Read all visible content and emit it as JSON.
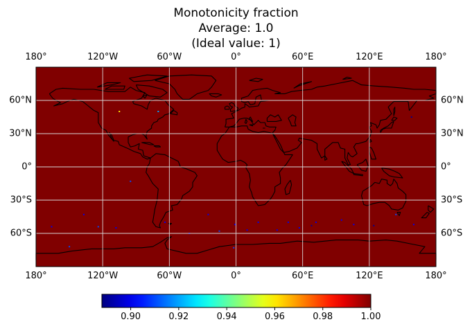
{
  "title": {
    "line1": "Monotonicity fraction",
    "line2": "Average: 1.0",
    "line3": "(Ideal value: 1)"
  },
  "map": {
    "projection": "PlateCarree",
    "fill_color": "#800000",
    "coastline_color": "#000000",
    "grid": true,
    "gridline_color": "#d9d9d9"
  },
  "axes": {
    "lon_ticks": [
      "180°",
      "120°W",
      "60°W",
      "0°",
      "60°E",
      "120°E",
      "180°"
    ],
    "lat_ticks": [
      "60°N",
      "30°N",
      "0°",
      "30°S",
      "60°S"
    ]
  },
  "chart_data": {
    "type": "heatmap",
    "field": "Monotonicity fraction",
    "average": 1.0,
    "ideal_value": 1,
    "colormap": "jet",
    "colorbar": {
      "range": [
        0.888,
        1.0
      ],
      "ticks": [
        0.9,
        0.92,
        0.94,
        0.96,
        0.98,
        1.0
      ],
      "tick_labels": [
        "0.90",
        "0.92",
        "0.94",
        "0.96",
        "0.98",
        "1.00"
      ],
      "orientation": "horizontal"
    },
    "dominant_value": 1.0,
    "low_value_points": [
      {
        "lon": -105,
        "lat": 50,
        "value": 0.96
      },
      {
        "lon": -70,
        "lat": 50,
        "value": 0.92
      },
      {
        "lon": 158,
        "lat": 45,
        "value": 0.89
      },
      {
        "lon": -95,
        "lat": -13,
        "value": 0.91
      },
      {
        "lon": -137,
        "lat": -43,
        "value": 0.9
      },
      {
        "lon": -166,
        "lat": -54,
        "value": 0.9
      },
      {
        "lon": -124,
        "lat": -54,
        "value": 0.91
      },
      {
        "lon": -108,
        "lat": -55,
        "value": 0.9
      },
      {
        "lon": -64,
        "lat": -50,
        "value": 0.9
      },
      {
        "lon": -42,
        "lat": -60,
        "value": 0.9
      },
      {
        "lon": -25,
        "lat": -43,
        "value": 0.9
      },
      {
        "lon": -15,
        "lat": -58,
        "value": 0.91
      },
      {
        "lon": -1,
        "lat": -52,
        "value": 0.9
      },
      {
        "lon": 10,
        "lat": -57,
        "value": 0.9
      },
      {
        "lon": 20,
        "lat": -50,
        "value": 0.9
      },
      {
        "lon": 37,
        "lat": -57,
        "value": 0.9
      },
      {
        "lon": 47,
        "lat": -50,
        "value": 0.9
      },
      {
        "lon": 57,
        "lat": -55,
        "value": 0.9
      },
      {
        "lon": 68,
        "lat": -53,
        "value": 0.89
      },
      {
        "lon": 72,
        "lat": -50,
        "value": 0.9
      },
      {
        "lon": 95,
        "lat": -48,
        "value": 0.9
      },
      {
        "lon": 106,
        "lat": -52,
        "value": 0.9
      },
      {
        "lon": 124,
        "lat": -53,
        "value": 0.89
      },
      {
        "lon": 144,
        "lat": -43,
        "value": 0.91
      },
      {
        "lon": 160,
        "lat": -52,
        "value": 0.9
      },
      {
        "lon": -2,
        "lat": -73,
        "value": 0.91
      },
      {
        "lon": -150,
        "lat": -72,
        "value": 0.91
      }
    ]
  }
}
